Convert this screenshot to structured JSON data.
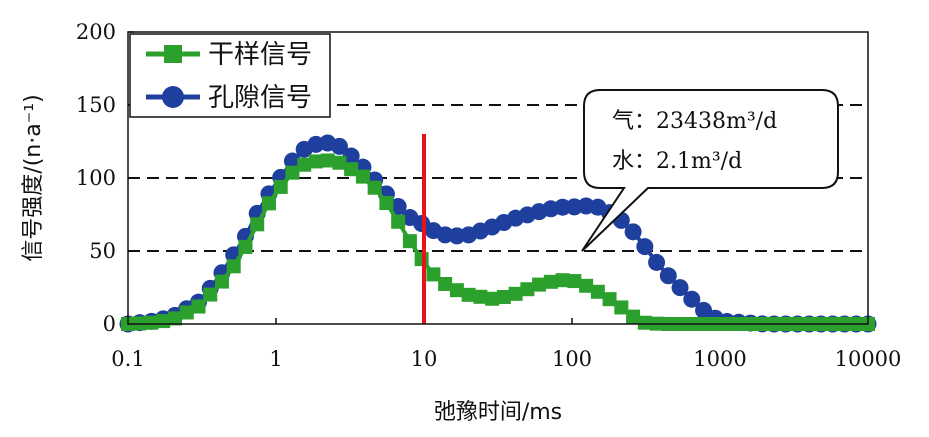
{
  "chart_data": {
    "type": "line",
    "xlabel": "弛豫时间/ms",
    "ylabel": "信号强度/(n·a⁻¹)",
    "x_scale": "log",
    "xlim": [
      0.1,
      10000
    ],
    "ylim": [
      0,
      200
    ],
    "x_ticks": [
      0.1,
      1,
      10,
      100,
      1000,
      10000
    ],
    "x_tick_labels": [
      "0.1",
      "1",
      "10",
      "100",
      "1000",
      "10000"
    ],
    "y_ticks": [
      0,
      50,
      100,
      150,
      200
    ],
    "y_tick_labels": [
      "0",
      "50",
      "100",
      "150",
      "200"
    ],
    "grid": "dashed horizontal at 50, 100, 150",
    "legend_position": "top-left",
    "marker_line": {
      "x": 10,
      "color": "#e8141b"
    },
    "annotation": {
      "line1": "气：23438m³/d",
      "line2": "水：2.1m³/d",
      "points_to": {
        "x": 100,
        "y": 50
      }
    },
    "series": [
      {
        "name": "干样信号",
        "color": "#2ca02c",
        "marker": "square",
        "x": [
          0.1,
          0.15,
          0.2,
          0.3,
          0.4,
          0.5,
          0.6,
          0.7,
          0.8,
          1.0,
          1.3,
          1.6,
          2.0,
          2.5,
          3.0,
          4.0,
          5.0,
          6.0,
          8.0,
          10,
          12,
          15,
          20,
          30,
          40,
          60,
          80,
          100,
          120,
          150,
          200,
          250,
          300,
          400,
          600,
          1000,
          2000,
          5000,
          10000
        ],
        "y": [
          0,
          1,
          3,
          12,
          25,
          37,
          50,
          62,
          75,
          90,
          104,
          110,
          112,
          112,
          108,
          100,
          90,
          78,
          57,
          42,
          32,
          25,
          20,
          17,
          20,
          27,
          30,
          30,
          27,
          22,
          14,
          6,
          1,
          0,
          0,
          0,
          0,
          0,
          0
        ]
      },
      {
        "name": "孔隙信号",
        "color": "#1f3f9e",
        "marker": "circle",
        "x": [
          0.1,
          0.15,
          0.2,
          0.3,
          0.4,
          0.5,
          0.6,
          0.7,
          0.8,
          1.0,
          1.3,
          1.6,
          2.0,
          2.5,
          3.0,
          4.0,
          5.0,
          6.0,
          8.0,
          10,
          12,
          15,
          20,
          30,
          40,
          60,
          80,
          100,
          120,
          150,
          200,
          250,
          300,
          400,
          600,
          800,
          1000,
          2000,
          5000,
          10000
        ],
        "y": [
          0,
          2,
          5,
          15,
          30,
          45,
          57,
          70,
          82,
          96,
          112,
          121,
          124,
          124,
          118,
          106,
          95,
          85,
          73,
          68,
          63,
          60,
          61,
          67,
          72,
          77,
          80,
          80,
          81,
          80,
          74,
          65,
          55,
          38,
          20,
          8,
          2,
          0,
          0,
          0
        ]
      }
    ]
  }
}
